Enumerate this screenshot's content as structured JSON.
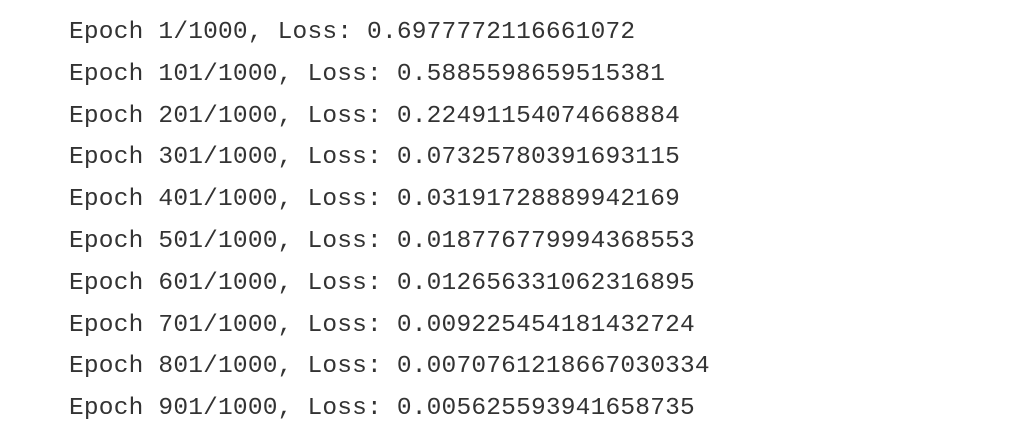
{
  "output": {
    "lines": [
      "Epoch 1/1000, Loss: 0.6977772116661072",
      "Epoch 101/1000, Loss: 0.5885598659515381",
      "Epoch 201/1000, Loss: 0.22491154074668884",
      "Epoch 301/1000, Loss: 0.07325780391693115",
      "Epoch 401/1000, Loss: 0.03191728889942169",
      "Epoch 501/1000, Loss: 0.018776779994368553",
      "Epoch 601/1000, Loss: 0.012656331062316895",
      "Epoch 701/1000, Loss: 0.009225454181432724",
      "Epoch 801/1000, Loss: 0.0070761218667030334",
      "Epoch 901/1000, Loss: 0.005625593941658735"
    ]
  }
}
